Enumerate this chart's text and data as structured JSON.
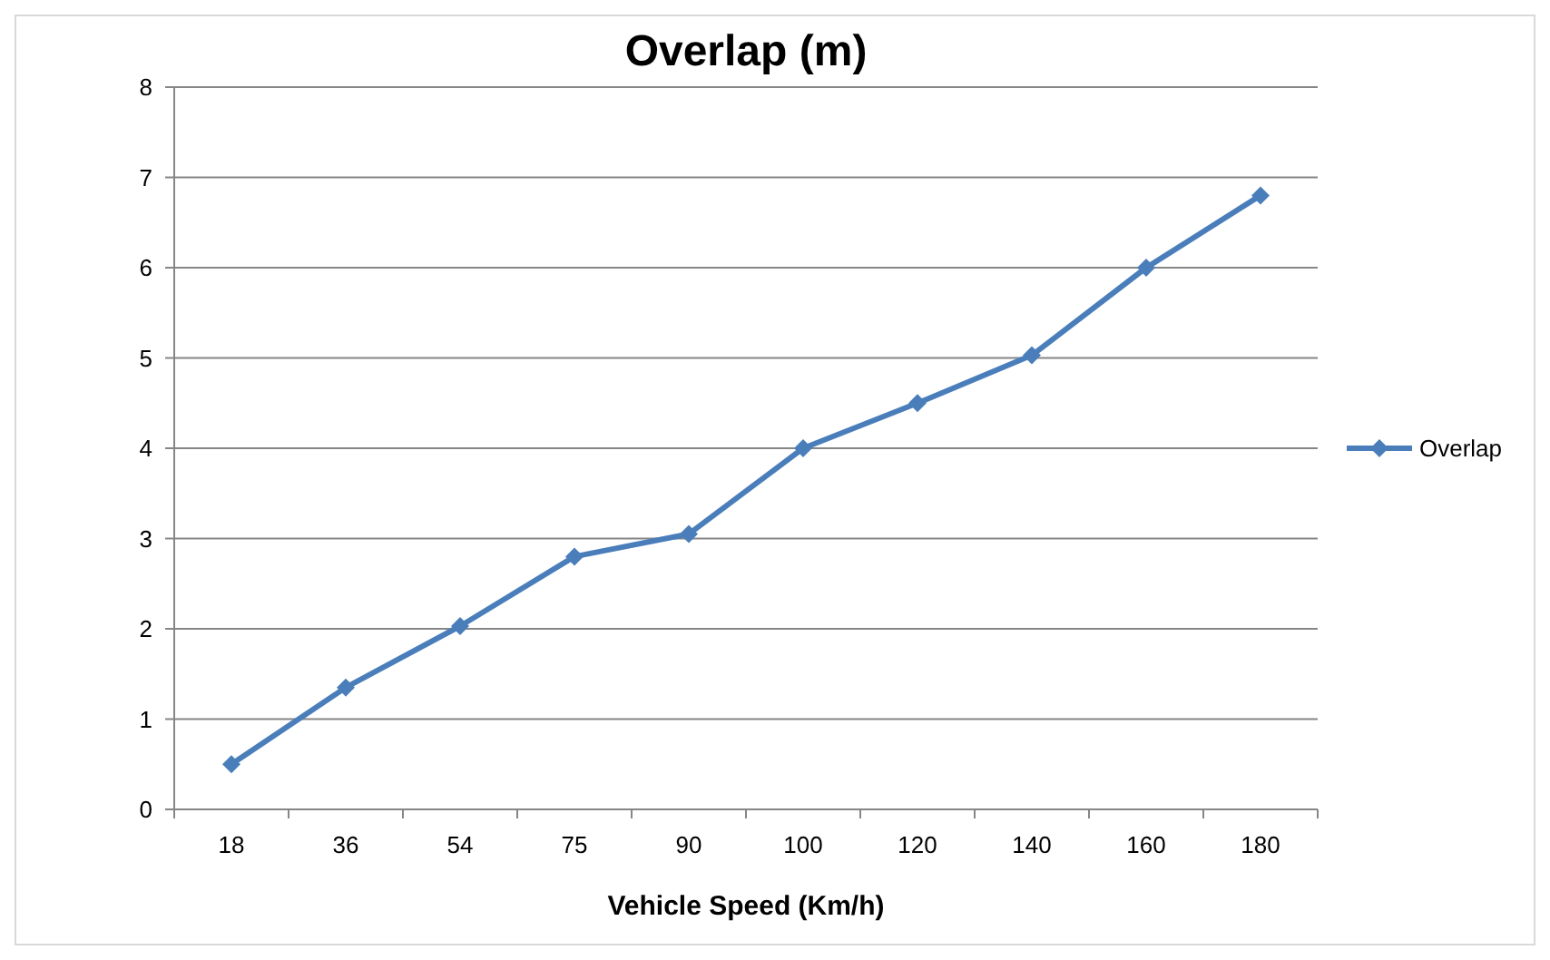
{
  "chart_data": {
    "type": "line",
    "title": "Overlap (m)",
    "xlabel": "Vehicle Speed (Km/h)",
    "categories": [
      "18",
      "36",
      "54",
      "75",
      "90",
      "100",
      "120",
      "140",
      "160",
      "180"
    ],
    "series": [
      {
        "name": "Overlap",
        "color": "#4a7ebb",
        "values": [
          0.5,
          1.35,
          2.03,
          2.8,
          3.05,
          4,
          4.5,
          5.03,
          6,
          6.8
        ]
      }
    ],
    "ylim": [
      0,
      8
    ],
    "yticks": [
      0,
      1,
      2,
      3,
      4,
      5,
      6,
      7,
      8
    ],
    "grid": "y",
    "legend": "right",
    "marker": "diamond"
  }
}
